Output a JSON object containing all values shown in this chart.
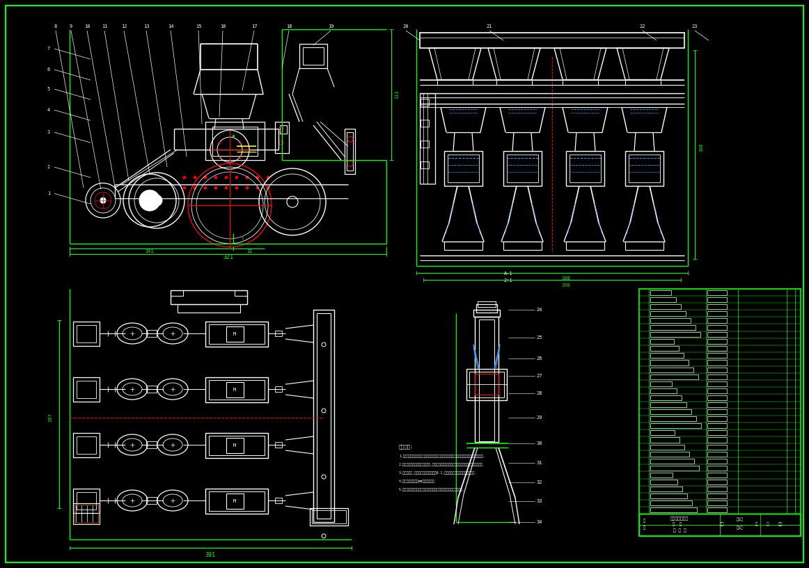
{
  "background_color": "#000000",
  "W": "#FFFFFF",
  "G": "#00FF00",
  "R": "#FF0000",
  "Y": "#FFFF00",
  "B": "#4499FF",
  "fig_width": 11.62,
  "fig_height": 8.16
}
